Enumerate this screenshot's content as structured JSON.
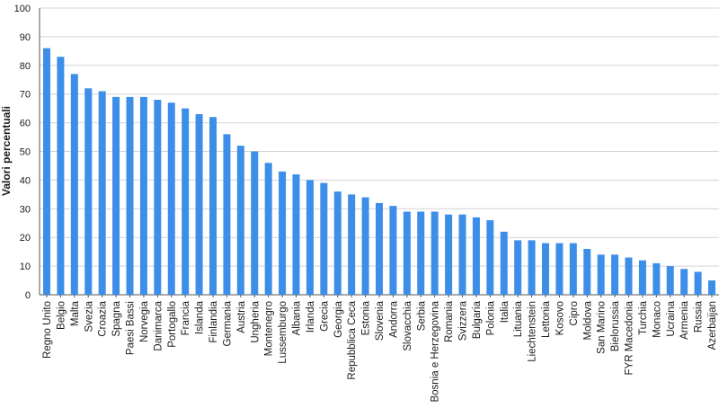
{
  "chart_data": {
    "type": "bar",
    "ylabel": "Valori percentuali",
    "xlabel": "",
    "ylim": [
      0,
      100
    ],
    "yticks": [
      0,
      10,
      20,
      30,
      40,
      50,
      60,
      70,
      80,
      90,
      100
    ],
    "grid": "horizontal",
    "bar_color": "#3d8ee8",
    "categories": [
      "Regno Unito",
      "Belgio",
      "Malta",
      "Svezia",
      "Croazia",
      "Spagna",
      "Paesi Bassi",
      "Norvegia",
      "Danimarca",
      "Portogallo",
      "Francia",
      "Islanda",
      "Finlandia",
      "Germania",
      "Austria",
      "Ungheria",
      "Montenegro",
      "Lussemburgo",
      "Albania",
      "Irlanda",
      "Grecia",
      "Georgia",
      "Repubblica Ceca",
      "Estonia",
      "Slovenia",
      "Andorra",
      "Slovacchia",
      "Serbia",
      "Bosnia e Herzegovina",
      "Romania",
      "Svizzera",
      "Bulgaria",
      "Polonia",
      "Italia",
      "Lituania",
      "Liechtenstein",
      "Lettonia",
      "Kosovo",
      "Cipro",
      "Moldova",
      "San Marino",
      "Bielorussia",
      "FYR Macedonia",
      "Turchia",
      "Monaco",
      "Ucraina",
      "Armenia",
      "Russia",
      "Azerbaijan"
    ],
    "values": [
      86,
      83,
      77,
      72,
      71,
      69,
      69,
      69,
      68,
      67,
      65,
      63,
      62,
      56,
      52,
      50,
      46,
      43,
      42,
      40,
      39,
      36,
      35,
      34,
      32,
      31,
      29,
      29,
      29,
      28,
      28,
      27,
      26,
      22,
      19,
      19,
      18,
      18,
      18,
      16,
      14,
      14,
      13,
      12,
      11,
      10,
      9,
      8,
      5
    ]
  }
}
